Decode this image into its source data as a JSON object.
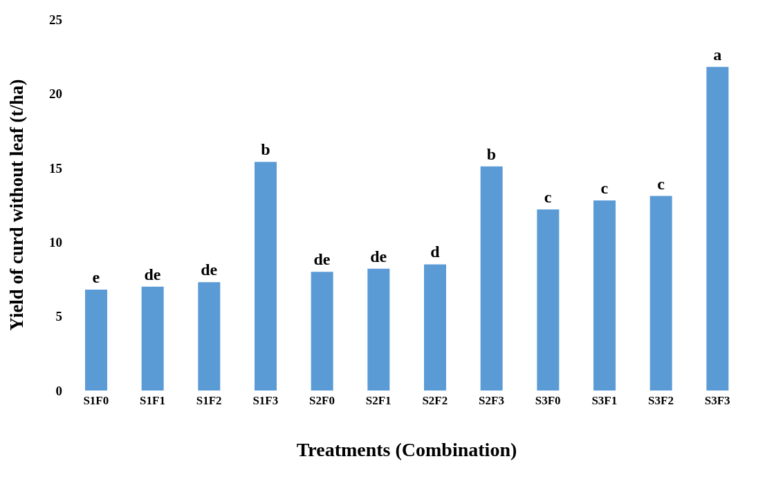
{
  "chart_data": {
    "type": "bar",
    "xlabel": "Treatments (Combination)",
    "ylabel": "Yield of curd without leaf (t/ha)",
    "categories": [
      "S1F0",
      "S1F1",
      "S1F2",
      "S1F3",
      "S2F0",
      "S2F1",
      "S2F2",
      "S2F3",
      "S3F0",
      "S3F1",
      "S3F2",
      "S3F3"
    ],
    "values": [
      6.8,
      7.0,
      7.3,
      15.4,
      8.0,
      8.2,
      8.5,
      15.1,
      12.2,
      12.8,
      13.1,
      21.8
    ],
    "color": "#5b9bd5",
    "ylim": [
      0,
      25
    ],
    "yticks": [
      0,
      5,
      10,
      15,
      20,
      25
    ],
    "grid": false,
    "legend": false,
    "annotations": [
      {
        "text": "e",
        "x": "S1F0",
        "y": 6.8
      },
      {
        "text": "de",
        "x": "S1F1",
        "y": 7.0
      },
      {
        "text": "de",
        "x": "S1F2",
        "y": 7.3
      },
      {
        "text": "b",
        "x": "S1F3",
        "y": 15.4
      },
      {
        "text": "de",
        "x": "S2F0",
        "y": 8.0
      },
      {
        "text": "de",
        "x": "S2F1",
        "y": 8.2
      },
      {
        "text": "d",
        "x": "S2F2",
        "y": 8.5
      },
      {
        "text": "b",
        "x": "S2F3",
        "y": 15.1
      },
      {
        "text": "c",
        "x": "S3F0",
        "y": 12.2
      },
      {
        "text": "c",
        "x": "S3F1",
        "y": 12.8
      },
      {
        "text": "c",
        "x": "S3F2",
        "y": 13.1
      },
      {
        "text": "a",
        "x": "S3F3",
        "y": 21.8
      }
    ]
  }
}
